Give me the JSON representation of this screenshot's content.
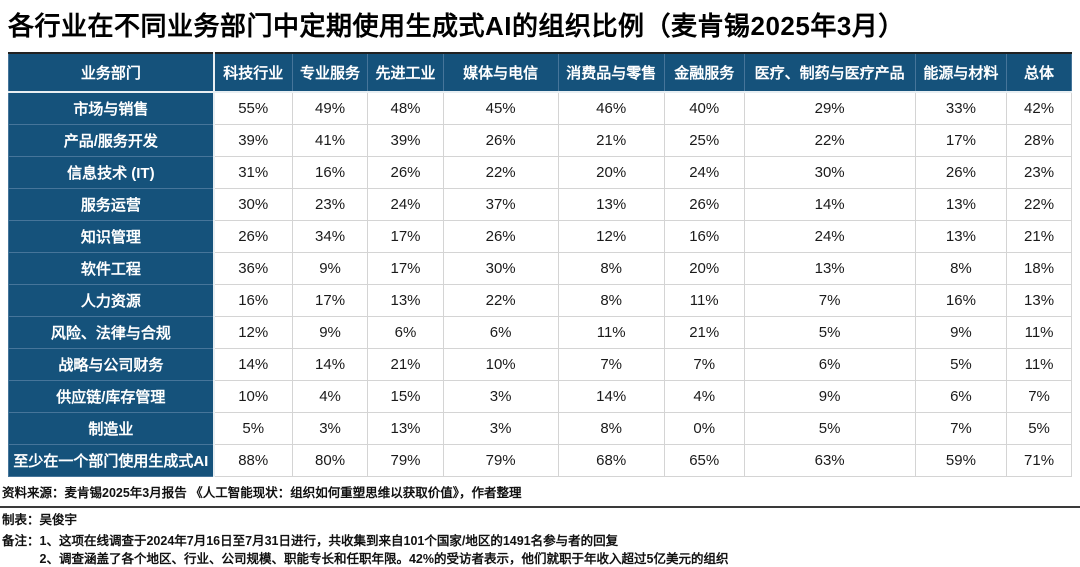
{
  "title": "各行业在不同业务部门中定期使用生成式AI的组织比例（麦肯锡2025年3月）",
  "colors": {
    "header_bg": "#15527B",
    "header_text": "#ffffff",
    "grid_line": "#d4d4d4",
    "top_rule": "#222222",
    "footer_rule": "#3a3a3a"
  },
  "chart_data": {
    "type": "table",
    "title": "各行业在不同业务部门中定期使用生成式AI的组织比例（麦肯锡2025年3月）",
    "columns": [
      "业务部门",
      "科技行业",
      "专业服务",
      "先进工业",
      "媒体与电信",
      "消费品与零售",
      "金融服务",
      "医疗、制药与医疗产品",
      "能源与材料",
      "总体"
    ],
    "rows": [
      {
        "label": "市场与销售",
        "values": [
          "55%",
          "49%",
          "48%",
          "45%",
          "46%",
          "40%",
          "29%",
          "33%",
          "42%"
        ]
      },
      {
        "label": "产品/服务开发",
        "values": [
          "39%",
          "41%",
          "39%",
          "26%",
          "21%",
          "25%",
          "22%",
          "17%",
          "28%"
        ]
      },
      {
        "label": "信息技术 (IT)",
        "values": [
          "31%",
          "16%",
          "26%",
          "22%",
          "20%",
          "24%",
          "30%",
          "26%",
          "23%"
        ]
      },
      {
        "label": "服务运营",
        "values": [
          "30%",
          "23%",
          "24%",
          "37%",
          "13%",
          "26%",
          "14%",
          "13%",
          "22%"
        ]
      },
      {
        "label": "知识管理",
        "values": [
          "26%",
          "34%",
          "17%",
          "26%",
          "12%",
          "16%",
          "24%",
          "13%",
          "21%"
        ]
      },
      {
        "label": "软件工程",
        "values": [
          "36%",
          "9%",
          "17%",
          "30%",
          "8%",
          "20%",
          "13%",
          "8%",
          "18%"
        ]
      },
      {
        "label": "人力资源",
        "values": [
          "16%",
          "17%",
          "13%",
          "22%",
          "8%",
          "11%",
          "7%",
          "16%",
          "13%"
        ]
      },
      {
        "label": "风险、法律与合规",
        "values": [
          "12%",
          "9%",
          "6%",
          "6%",
          "11%",
          "21%",
          "5%",
          "9%",
          "11%"
        ]
      },
      {
        "label": "战略与公司财务",
        "values": [
          "14%",
          "14%",
          "21%",
          "10%",
          "7%",
          "7%",
          "6%",
          "5%",
          "11%"
        ]
      },
      {
        "label": "供应链/库存管理",
        "values": [
          "10%",
          "4%",
          "15%",
          "3%",
          "14%",
          "4%",
          "9%",
          "6%",
          "7%"
        ]
      },
      {
        "label": "制造业",
        "values": [
          "5%",
          "3%",
          "13%",
          "3%",
          "8%",
          "0%",
          "5%",
          "7%",
          "5%"
        ]
      },
      {
        "label": "至少在一个部门使用生成式AI",
        "values": [
          "88%",
          "80%",
          "79%",
          "79%",
          "68%",
          "65%",
          "63%",
          "59%",
          "71%"
        ]
      }
    ]
  },
  "footer": {
    "source_line": "资料来源：麦肯锡2025年3月报告 《人工智能现状：组织如何重塑思维以获取价值》，作者整理",
    "author_line": "制表：吴俊宇",
    "notes_label": "备注：",
    "note_1": "1、这项在线调查于2024年7月16日至7月31日进行，共收集到来自101个国家/地区的1491名参与者的回复",
    "note_2": "2、调查涵盖了各个地区、行业、公司规模、职能专长和任职年限。42%的受访者表示，他们就职于年收入超过5亿美元的组织"
  }
}
